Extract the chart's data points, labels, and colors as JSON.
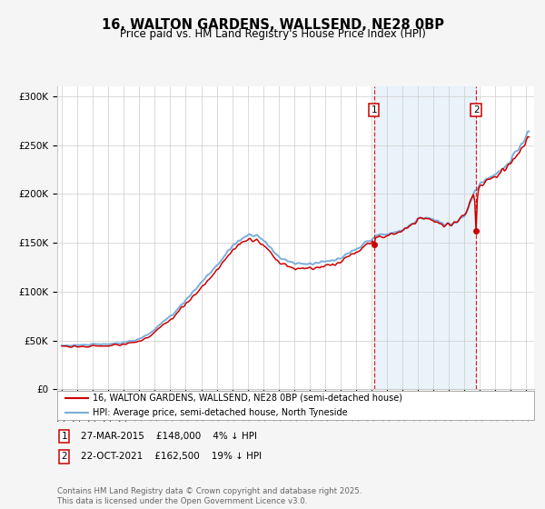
{
  "title": "16, WALTON GARDENS, WALLSEND, NE28 0BP",
  "subtitle": "Price paid vs. HM Land Registry's House Price Index (HPI)",
  "ylim": [
    0,
    310000
  ],
  "yticks": [
    0,
    50000,
    100000,
    150000,
    200000,
    250000,
    300000
  ],
  "ytick_labels": [
    "£0",
    "£50K",
    "£100K",
    "£150K",
    "£200K",
    "£250K",
    "£300K"
  ],
  "hpi_color": "#7aaedb",
  "price_color": "#cc0000",
  "vline_color": "#cc0000",
  "shade_color": "#daeaf7",
  "marker1_price": 148000,
  "marker2_price": 162500,
  "marker1_info": "27-MAR-2015    £148,000    4% ↓ HPI",
  "marker2_info": "22-OCT-2021    £162,500    19% ↓ HPI",
  "legend1": "16, WALTON GARDENS, WALLSEND, NE28 0BP (semi-detached house)",
  "legend2": "HPI: Average price, semi-detached house, North Tyneside",
  "footer": "Contains HM Land Registry data © Crown copyright and database right 2025.\nThis data is licensed under the Open Government Licence v3.0.",
  "fig_bg_color": "#f5f5f5",
  "plot_bg_color": "#ffffff",
  "title_fontsize": 10.5,
  "subtitle_fontsize": 8.5
}
